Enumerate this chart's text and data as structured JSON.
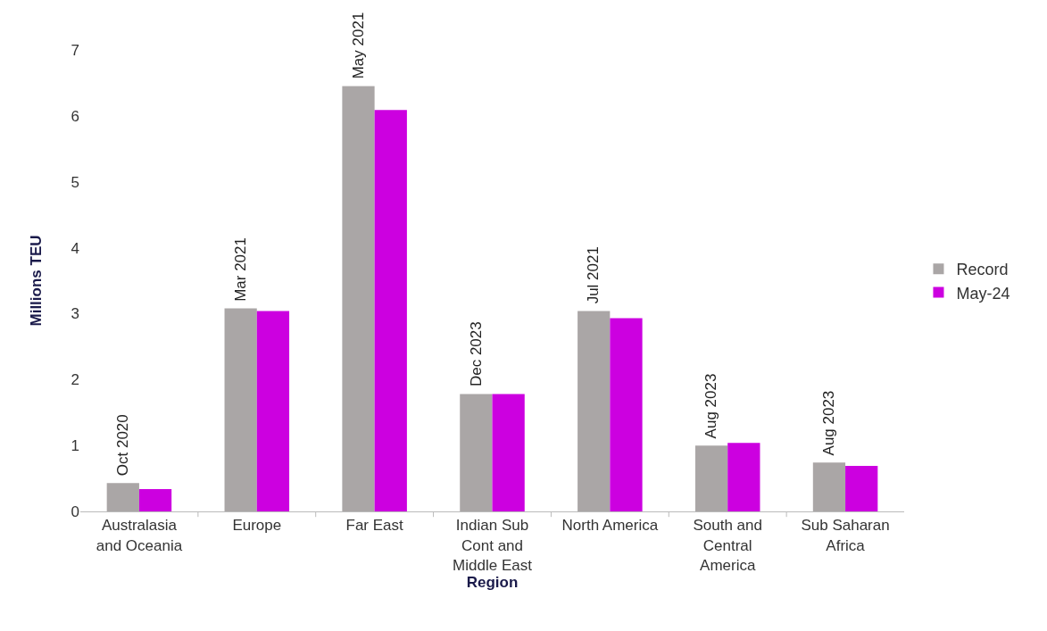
{
  "chart_data": {
    "type": "bar",
    "xlabel": "Region",
    "ylabel": "Millions TEU",
    "categories": [
      "Australasia and Oceania",
      "Europe",
      "Far East",
      "Indian Sub Cont and Middle East",
      "North America",
      "South and Central America",
      "Sub Saharan Africa"
    ],
    "series": [
      {
        "name": "Record",
        "color": "#aaa6a6",
        "values": [
          0.43,
          3.08,
          6.45,
          1.78,
          3.04,
          1.0,
          0.74
        ]
      },
      {
        "name": "May-24",
        "color": "#cc00e0",
        "values": [
          0.34,
          3.04,
          6.09,
          1.78,
          2.93,
          1.04,
          0.69
        ]
      }
    ],
    "annotations": [
      {
        "text": "Oct 2020",
        "x": "Australasia and Oceania",
        "y": 0.43
      },
      {
        "text": "Mar 2021",
        "x": "Europe",
        "y": 3.08
      },
      {
        "text": "May 2021",
        "x": "Far East",
        "y": 6.45
      },
      {
        "text": "Dec 2023",
        "x": "Indian Sub Cont and Middle East",
        "y": 1.78
      },
      {
        "text": "Jul 2021",
        "x": "North America",
        "y": 3.04
      },
      {
        "text": "Aug 2023",
        "x": "South and Central America",
        "y": 1.0
      },
      {
        "text": "Aug 2023",
        "x": "Sub Saharan Africa",
        "y": 0.74
      }
    ],
    "ylim": [
      0,
      7
    ],
    "yticks": [
      0,
      1,
      2,
      3,
      4,
      5,
      6,
      7
    ],
    "grid": false,
    "legend": "right"
  }
}
